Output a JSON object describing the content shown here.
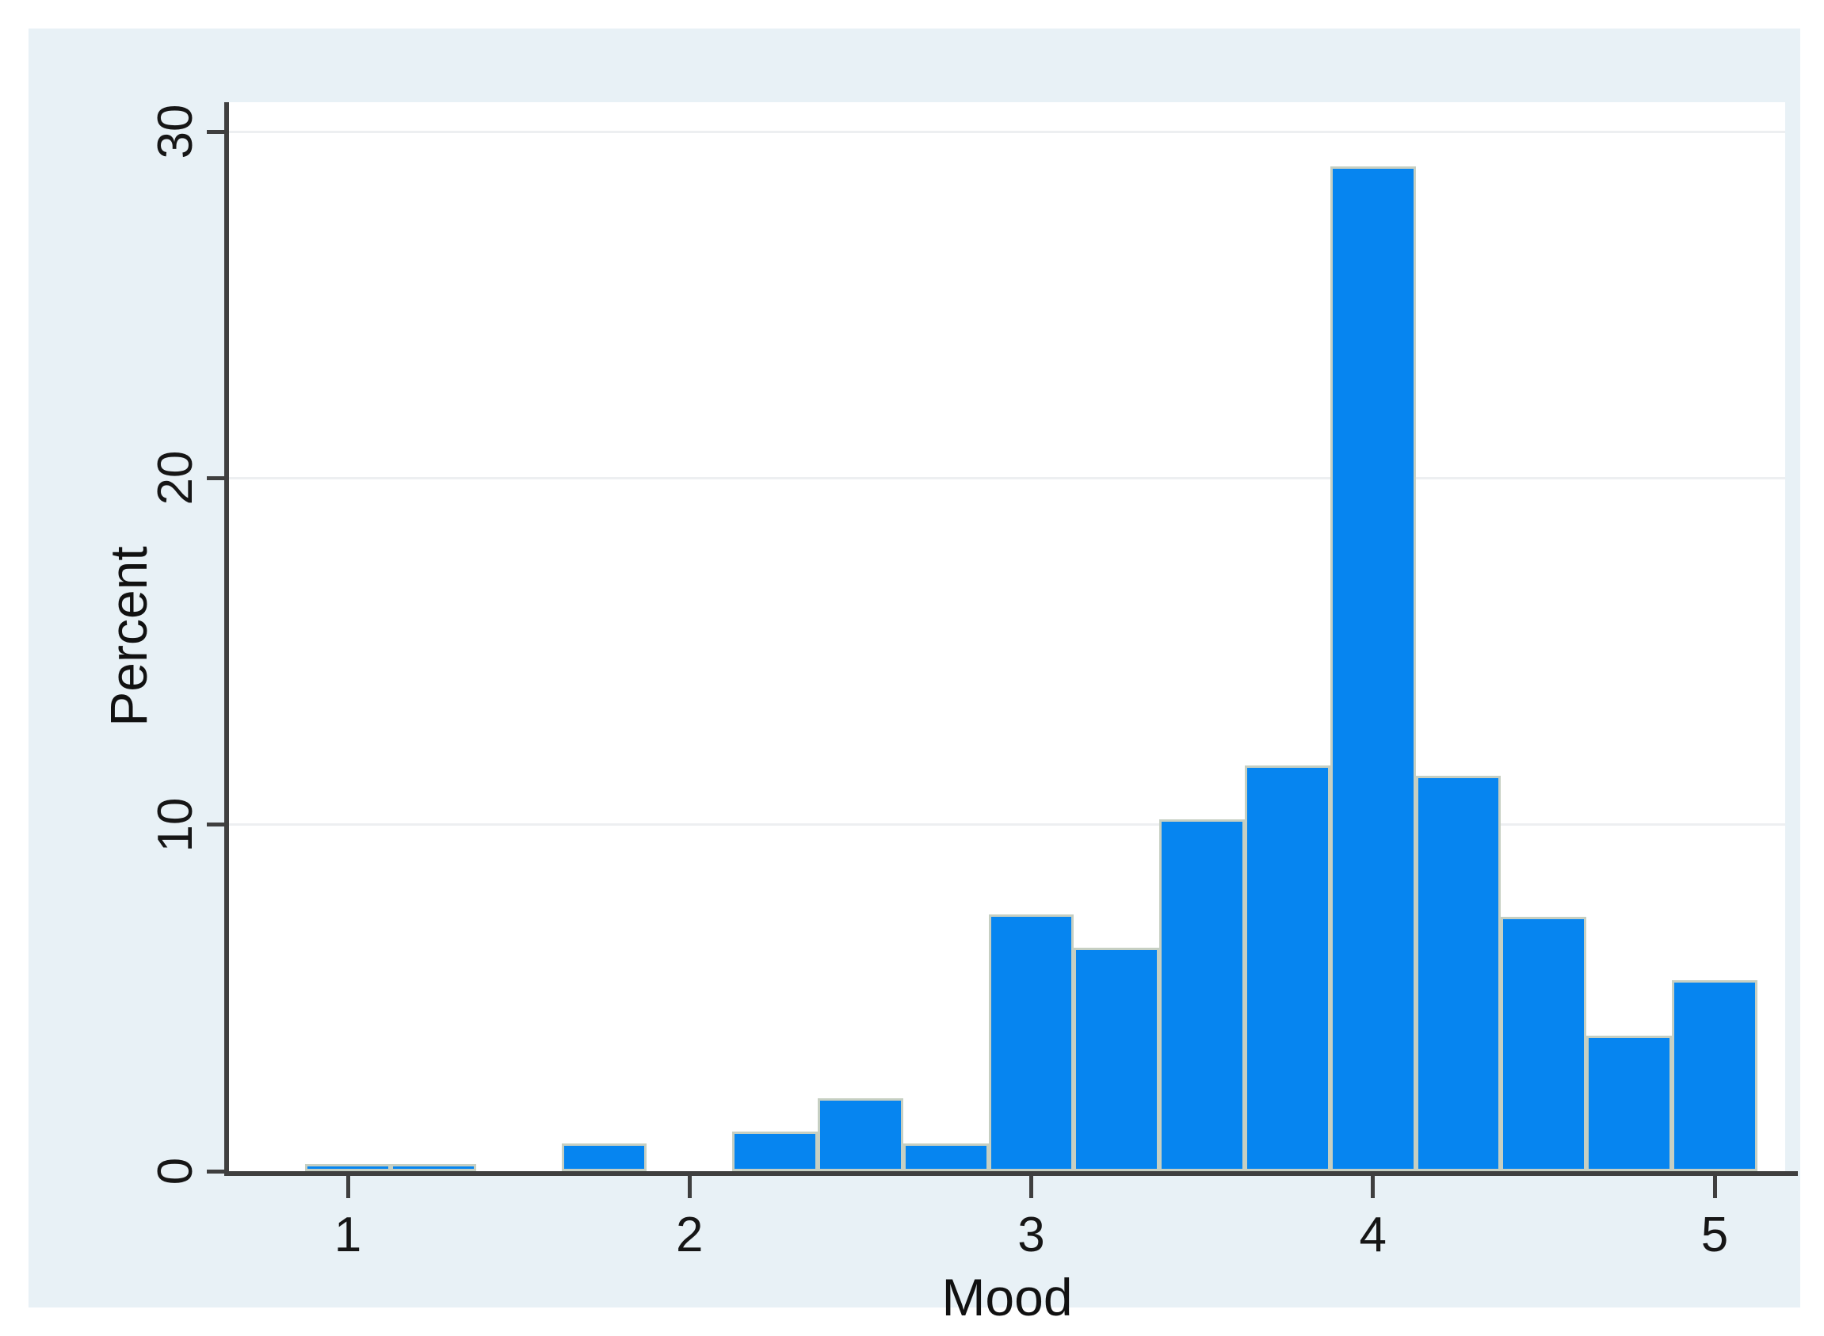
{
  "chart_data": {
    "type": "bar",
    "subtype": "histogram",
    "title": "",
    "xlabel": "Mood",
    "ylabel": "Percent",
    "x_ticks": [
      1,
      2,
      3,
      4,
      5
    ],
    "y_ticks": [
      0,
      10,
      20,
      30
    ],
    "xlim": [
      0.65,
      5.21
    ],
    "ylim": [
      0,
      30.8
    ],
    "bin_width": 0.25,
    "grid": "horizontal-gridlines-at-10-20-30",
    "legend": "none",
    "bins": [
      {
        "center": 1.0,
        "percent": 0.2
      },
      {
        "center": 1.25,
        "percent": 0.2
      },
      {
        "center": 1.5,
        "percent": 0.0
      },
      {
        "center": 1.75,
        "percent": 0.8
      },
      {
        "center": 2.0,
        "percent": 0.0
      },
      {
        "center": 2.25,
        "percent": 1.15
      },
      {
        "center": 2.5,
        "percent": 2.1
      },
      {
        "center": 2.75,
        "percent": 0.8
      },
      {
        "center": 3.0,
        "percent": 7.4
      },
      {
        "center": 3.25,
        "percent": 6.45
      },
      {
        "center": 3.5,
        "percent": 10.15
      },
      {
        "center": 3.75,
        "percent": 11.7
      },
      {
        "center": 4.0,
        "percent": 29.0
      },
      {
        "center": 4.25,
        "percent": 11.4
      },
      {
        "center": 4.5,
        "percent": 7.35
      },
      {
        "center": 4.75,
        "percent": 3.9
      },
      {
        "center": 5.0,
        "percent": 5.5
      }
    ]
  },
  "colors": {
    "page_background": "#ffffff",
    "panel_background": "#e8f1f6",
    "plot_background": "#ffffff",
    "gridline": "#edeff1",
    "axis_line": "#3f3f3f",
    "bar_fill": "#0685f0",
    "bar_outline": "#c6cfc2",
    "text": "#161616"
  }
}
